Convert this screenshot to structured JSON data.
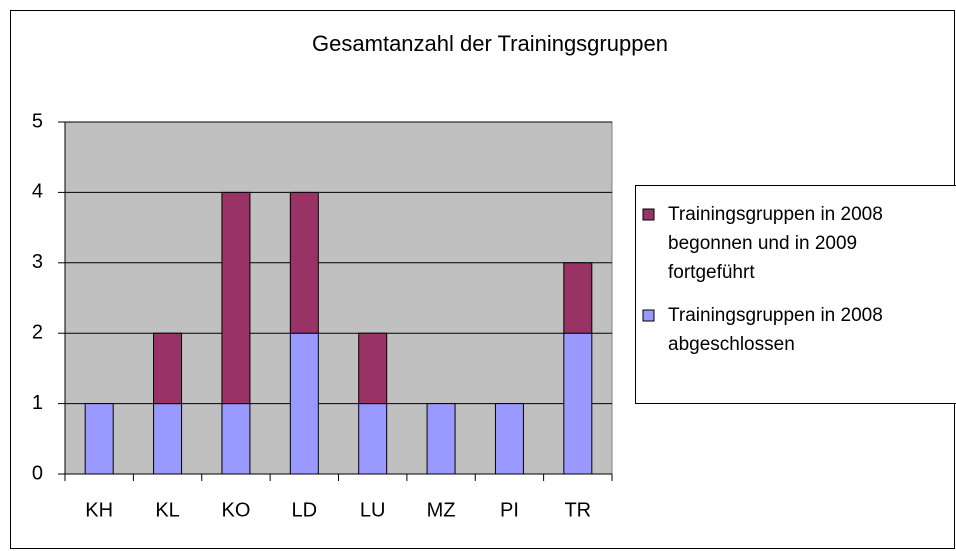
{
  "chart_data": {
    "type": "bar",
    "stacked": true,
    "title": "Gesamtanzahl der Trainingsgruppen",
    "categories": [
      "KH",
      "KL",
      "KO",
      "LD",
      "LU",
      "MZ",
      "PI",
      "TR"
    ],
    "series": [
      {
        "name": "Trainingsgruppen in 2008 begonnen und in 2009 fortgeführt",
        "color": "#993366",
        "values": [
          0,
          1,
          3,
          2,
          1,
          0,
          0,
          1
        ]
      },
      {
        "name": "Trainingsgruppen in 2008 abgeschlossen",
        "color": "#9999ff",
        "values": [
          1,
          1,
          1,
          2,
          1,
          1,
          1,
          2
        ]
      }
    ],
    "ylim": [
      0,
      5
    ],
    "yticks": [
      0,
      1,
      2,
      3,
      4,
      5
    ],
    "grid": true,
    "legend": "right"
  }
}
